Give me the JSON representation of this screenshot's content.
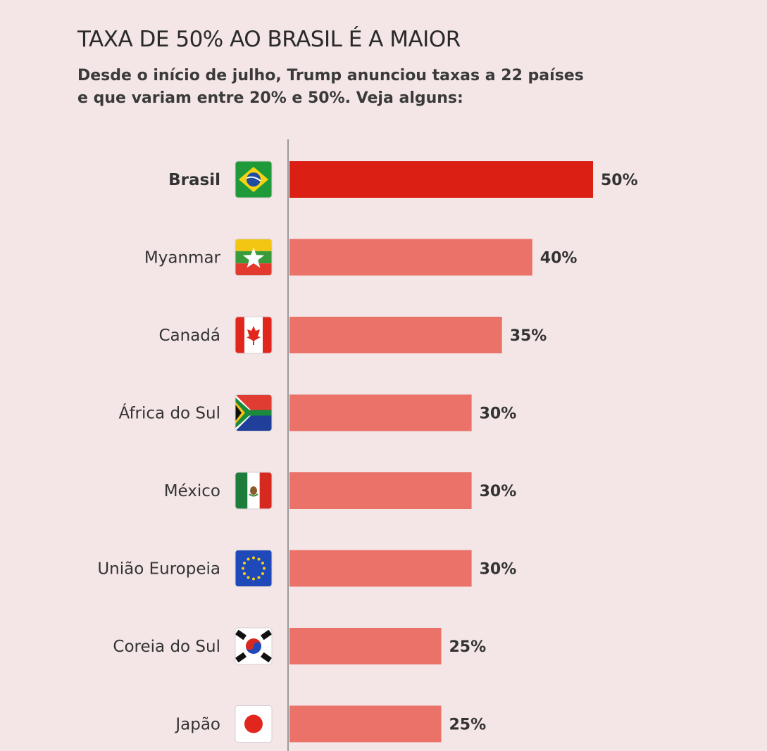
{
  "title": "TAXA DE 50% AO BRASIL É A MAIOR",
  "subtitle": "Desde o início de julho, Trump anunciou taxas a 22 países e que variam entre 20% e 50%. Veja alguns:",
  "colors": {
    "background": "#f4e6e7",
    "highlight_bar": "#dc1f15",
    "bar": "#ea7268",
    "axis": "#9a9a9a"
  },
  "chart_data": {
    "type": "bar",
    "orientation": "horizontal",
    "categories": [
      "Brasil",
      "Myanmar",
      "Canadá",
      "África do Sul",
      "México",
      "União Europeia",
      "Coreia do Sul",
      "Japão"
    ],
    "values": [
      50,
      40,
      35,
      30,
      30,
      30,
      25,
      25
    ],
    "value_labels": [
      "50%",
      "40%",
      "35%",
      "30%",
      "30%",
      "30%",
      "25%",
      "25%"
    ],
    "flag_icons": [
      "brazil-flag-icon",
      "myanmar-flag-icon",
      "canada-flag-icon",
      "south-africa-flag-icon",
      "mexico-flag-icon",
      "eu-flag-icon",
      "south-korea-flag-icon",
      "japan-flag-icon"
    ],
    "highlight": "Brasil",
    "xlim": [
      0,
      50
    ],
    "grid": false,
    "legend": "none"
  }
}
